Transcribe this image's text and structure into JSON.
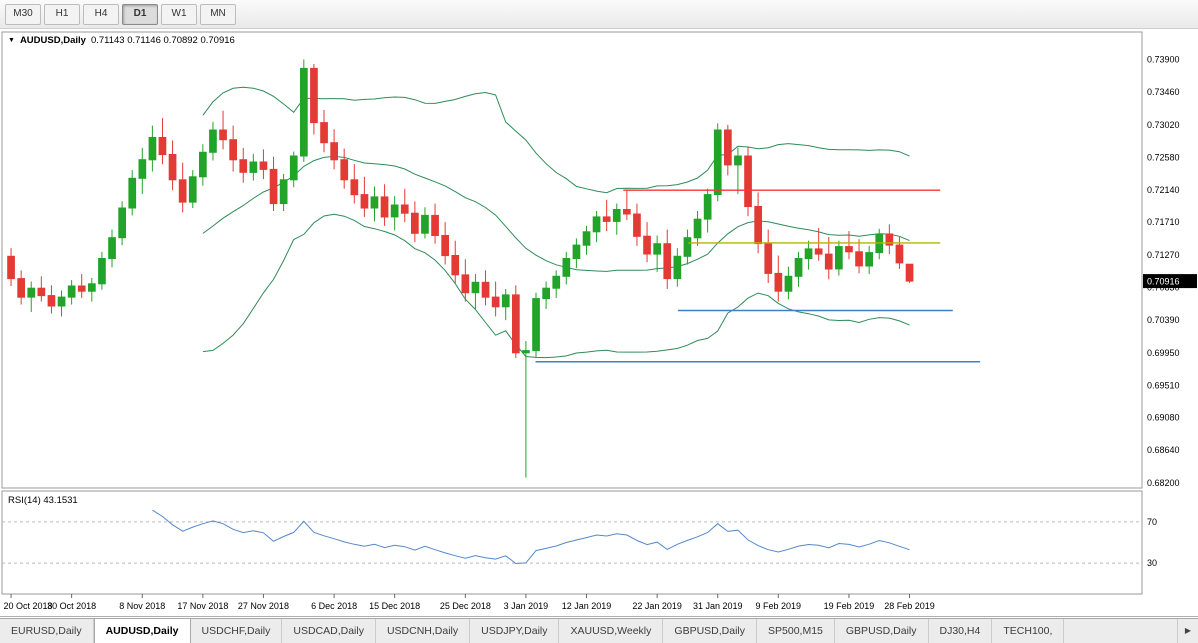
{
  "toolbar": {
    "timeframes": [
      {
        "label": "M30",
        "active": false
      },
      {
        "label": "H1",
        "active": false
      },
      {
        "label": "H4",
        "active": false
      },
      {
        "label": "D1",
        "active": true
      },
      {
        "label": "W1",
        "active": false
      },
      {
        "label": "MN",
        "active": false
      }
    ]
  },
  "chart": {
    "title": "AUDUSD,Daily",
    "ohlc": "0.71143 0.71146 0.70892 0.70916",
    "menu_icon": "▼",
    "rsi_label": "RSI(14) 43.1531",
    "current_price": "0.70916",
    "price_axis_labels": [
      "0.73900",
      "0.73460",
      "0.73020",
      "0.72580",
      "0.72140",
      "0.71710",
      "0.71270",
      "0.70830",
      "0.70390",
      "0.69950",
      "0.69510",
      "0.69080",
      "0.68640",
      "0.68200"
    ]
  },
  "chart_data": {
    "type": "candlestick",
    "symbol": "AUDUSD",
    "timeframe": "Daily",
    "title": "AUDUSD,Daily 0.71143 0.71146 0.70892 0.70916",
    "ylim": [
      0.6813,
      0.7427
    ],
    "grid": false,
    "x_labels": [
      "20 Oct 2018",
      "30 Oct 2018",
      "8 Nov 2018",
      "17 Nov 2018",
      "27 Nov 2018",
      "6 Dec 2018",
      "15 Dec 2018",
      "25 Dec 2018",
      "3 Jan 2019",
      "12 Jan 2019",
      "22 Jan 2019",
      "31 Jan 2019",
      "9 Feb 2019",
      "19 Feb 2019",
      "28 Feb 2019"
    ],
    "candles": [
      [
        0.7125,
        0.7136,
        0.7085,
        0.7095
      ],
      [
        0.7095,
        0.7106,
        0.706,
        0.707
      ],
      [
        0.707,
        0.7091,
        0.705,
        0.7082
      ],
      [
        0.7082,
        0.7098,
        0.7064,
        0.7072
      ],
      [
        0.7072,
        0.7086,
        0.7048,
        0.7058
      ],
      [
        0.7058,
        0.7079,
        0.7044,
        0.707
      ],
      [
        0.707,
        0.7093,
        0.706,
        0.7085
      ],
      [
        0.7085,
        0.7101,
        0.7069,
        0.7078
      ],
      [
        0.7078,
        0.7096,
        0.7064,
        0.7088
      ],
      [
        0.7088,
        0.7131,
        0.708,
        0.7122
      ],
      [
        0.7122,
        0.7161,
        0.711,
        0.715
      ],
      [
        0.715,
        0.7199,
        0.714,
        0.719
      ],
      [
        0.719,
        0.7241,
        0.718,
        0.723
      ],
      [
        0.723,
        0.7271,
        0.7209,
        0.7255
      ],
      [
        0.7255,
        0.7301,
        0.7239,
        0.7285
      ],
      [
        0.7285,
        0.7311,
        0.7249,
        0.7262
      ],
      [
        0.7262,
        0.7281,
        0.7214,
        0.7228
      ],
      [
        0.7228,
        0.7251,
        0.7184,
        0.7198
      ],
      [
        0.7198,
        0.7241,
        0.719,
        0.7232
      ],
      [
        0.7232,
        0.7276,
        0.722,
        0.7265
      ],
      [
        0.7265,
        0.7306,
        0.7254,
        0.7295
      ],
      [
        0.7295,
        0.7321,
        0.7269,
        0.7282
      ],
      [
        0.7282,
        0.7301,
        0.7239,
        0.7255
      ],
      [
        0.7255,
        0.7271,
        0.7224,
        0.7238
      ],
      [
        0.7238,
        0.7263,
        0.7227,
        0.7252
      ],
      [
        0.7252,
        0.7269,
        0.7229,
        0.7242
      ],
      [
        0.7242,
        0.7259,
        0.7186,
        0.7196
      ],
      [
        0.7196,
        0.7236,
        0.7186,
        0.7228
      ],
      [
        0.7228,
        0.7266,
        0.7218,
        0.726
      ],
      [
        0.726,
        0.739,
        0.7252,
        0.7378
      ],
      [
        0.7378,
        0.7384,
        0.7289,
        0.7305
      ],
      [
        0.7305,
        0.7322,
        0.7265,
        0.7278
      ],
      [
        0.7278,
        0.7296,
        0.7242,
        0.7255
      ],
      [
        0.7255,
        0.727,
        0.7216,
        0.7228
      ],
      [
        0.7228,
        0.7249,
        0.7196,
        0.7208
      ],
      [
        0.7208,
        0.7232,
        0.7178,
        0.719
      ],
      [
        0.719,
        0.7219,
        0.7172,
        0.7205
      ],
      [
        0.7205,
        0.7222,
        0.7166,
        0.7178
      ],
      [
        0.7178,
        0.7206,
        0.716,
        0.7194
      ],
      [
        0.7194,
        0.7216,
        0.7171,
        0.7183
      ],
      [
        0.7183,
        0.7199,
        0.7144,
        0.7156
      ],
      [
        0.7156,
        0.7191,
        0.7149,
        0.718
      ],
      [
        0.718,
        0.7196,
        0.7142,
        0.7153
      ],
      [
        0.7153,
        0.7171,
        0.7114,
        0.7126
      ],
      [
        0.7126,
        0.7146,
        0.7089,
        0.71
      ],
      [
        0.71,
        0.7121,
        0.7064,
        0.7076
      ],
      [
        0.7076,
        0.7101,
        0.7054,
        0.709
      ],
      [
        0.709,
        0.7106,
        0.7059,
        0.707
      ],
      [
        0.707,
        0.7091,
        0.7044,
        0.7057
      ],
      [
        0.7057,
        0.7081,
        0.7039,
        0.7073
      ],
      [
        0.7073,
        0.7086,
        0.6988,
        0.6995
      ],
      [
        0.6995,
        0.7011,
        0.6827,
        0.6998
      ],
      [
        0.6998,
        0.7076,
        0.6989,
        0.7068
      ],
      [
        0.7068,
        0.7091,
        0.7054,
        0.7082
      ],
      [
        0.7082,
        0.7106,
        0.7069,
        0.7098
      ],
      [
        0.7098,
        0.7131,
        0.7087,
        0.7122
      ],
      [
        0.7122,
        0.7149,
        0.7109,
        0.714
      ],
      [
        0.714,
        0.7166,
        0.7127,
        0.7158
      ],
      [
        0.7158,
        0.7186,
        0.7144,
        0.7178
      ],
      [
        0.7178,
        0.7201,
        0.7159,
        0.7172
      ],
      [
        0.7172,
        0.7196,
        0.7154,
        0.7188
      ],
      [
        0.7188,
        0.7213,
        0.7174,
        0.7182
      ],
      [
        0.7182,
        0.7196,
        0.7139,
        0.7152
      ],
      [
        0.7152,
        0.7171,
        0.7117,
        0.7128
      ],
      [
        0.7128,
        0.7153,
        0.7104,
        0.7142
      ],
      [
        0.7142,
        0.7161,
        0.7081,
        0.7095
      ],
      [
        0.7095,
        0.7136,
        0.7084,
        0.7125
      ],
      [
        0.7125,
        0.7161,
        0.7114,
        0.715
      ],
      [
        0.715,
        0.7186,
        0.7139,
        0.7175
      ],
      [
        0.7175,
        0.7216,
        0.7157,
        0.7208
      ],
      [
        0.7208,
        0.7304,
        0.7199,
        0.7295
      ],
      [
        0.7295,
        0.7302,
        0.7234,
        0.7248
      ],
      [
        0.7248,
        0.7271,
        0.7209,
        0.726
      ],
      [
        0.726,
        0.7273,
        0.7179,
        0.7192
      ],
      [
        0.7192,
        0.7211,
        0.7129,
        0.7142
      ],
      [
        0.7142,
        0.7161,
        0.7089,
        0.7102
      ],
      [
        0.7102,
        0.7126,
        0.7064,
        0.7078
      ],
      [
        0.7078,
        0.7111,
        0.7067,
        0.7098
      ],
      [
        0.7098,
        0.7131,
        0.7084,
        0.7122
      ],
      [
        0.7122,
        0.7146,
        0.7107,
        0.7135
      ],
      [
        0.7135,
        0.7163,
        0.7119,
        0.7128
      ],
      [
        0.7128,
        0.7151,
        0.7094,
        0.7108
      ],
      [
        0.7108,
        0.7146,
        0.7099,
        0.7138
      ],
      [
        0.7138,
        0.7159,
        0.7121,
        0.7131
      ],
      [
        0.7131,
        0.7148,
        0.7102,
        0.7112
      ],
      [
        0.7112,
        0.7139,
        0.7101,
        0.713
      ],
      [
        0.713,
        0.7162,
        0.7121,
        0.7155
      ],
      [
        0.7155,
        0.7168,
        0.7128,
        0.714
      ],
      [
        0.714,
        0.7151,
        0.7108,
        0.7116
      ],
      [
        0.71143,
        0.71146,
        0.70892,
        0.70916
      ]
    ],
    "overlays": {
      "bollinger": {
        "period": 20,
        "deviation": 2,
        "color": "#2e8b57"
      }
    },
    "hlines": [
      {
        "name": "resistance-line-red",
        "price": 0.7214,
        "color": "#ff3333",
        "x1": 0.545,
        "x2": 0.823
      },
      {
        "name": "pivot-line-yellow",
        "price": 0.7143,
        "color": "#b3b300",
        "x1": 0.602,
        "x2": 0.823
      },
      {
        "name": "support-line-blue-upper",
        "price": 0.7052,
        "color": "#4080c0",
        "x1": 0.593,
        "x2": 0.834
      },
      {
        "name": "support-line-blue-lower",
        "price": 0.6983,
        "color": "#4080c0",
        "x1": 0.468,
        "x2": 0.858
      }
    ],
    "indicator": {
      "name": "RSI",
      "period": 14,
      "value_text": "43.1531",
      "levels": [
        70,
        30
      ],
      "color": "#5588cc"
    },
    "colors": {
      "candle_up": "#22a329",
      "candle_down": "#e33a35",
      "band": "#2e8b57",
      "badge_bg": "#000000",
      "badge_text": "#ffffff"
    }
  },
  "tabs": {
    "items": [
      {
        "label": "EURUSD,Daily",
        "active": false
      },
      {
        "label": "AUDUSD,Daily",
        "active": true
      },
      {
        "label": "USDCHF,Daily",
        "active": false
      },
      {
        "label": "USDCAD,Daily",
        "active": false
      },
      {
        "label": "USDCNH,Daily",
        "active": false
      },
      {
        "label": "USDJPY,Daily",
        "active": false
      },
      {
        "label": "XAUUSD,Weekly",
        "active": false
      },
      {
        "label": "GBPUSD,Daily",
        "active": false
      },
      {
        "label": "SP500,M15",
        "active": false
      },
      {
        "label": "GBPUSD,Daily",
        "active": false
      },
      {
        "label": "DJ30,H4",
        "active": false
      },
      {
        "label": "TECH100,",
        "active": false
      }
    ],
    "scroll_right_icon": "▶"
  }
}
